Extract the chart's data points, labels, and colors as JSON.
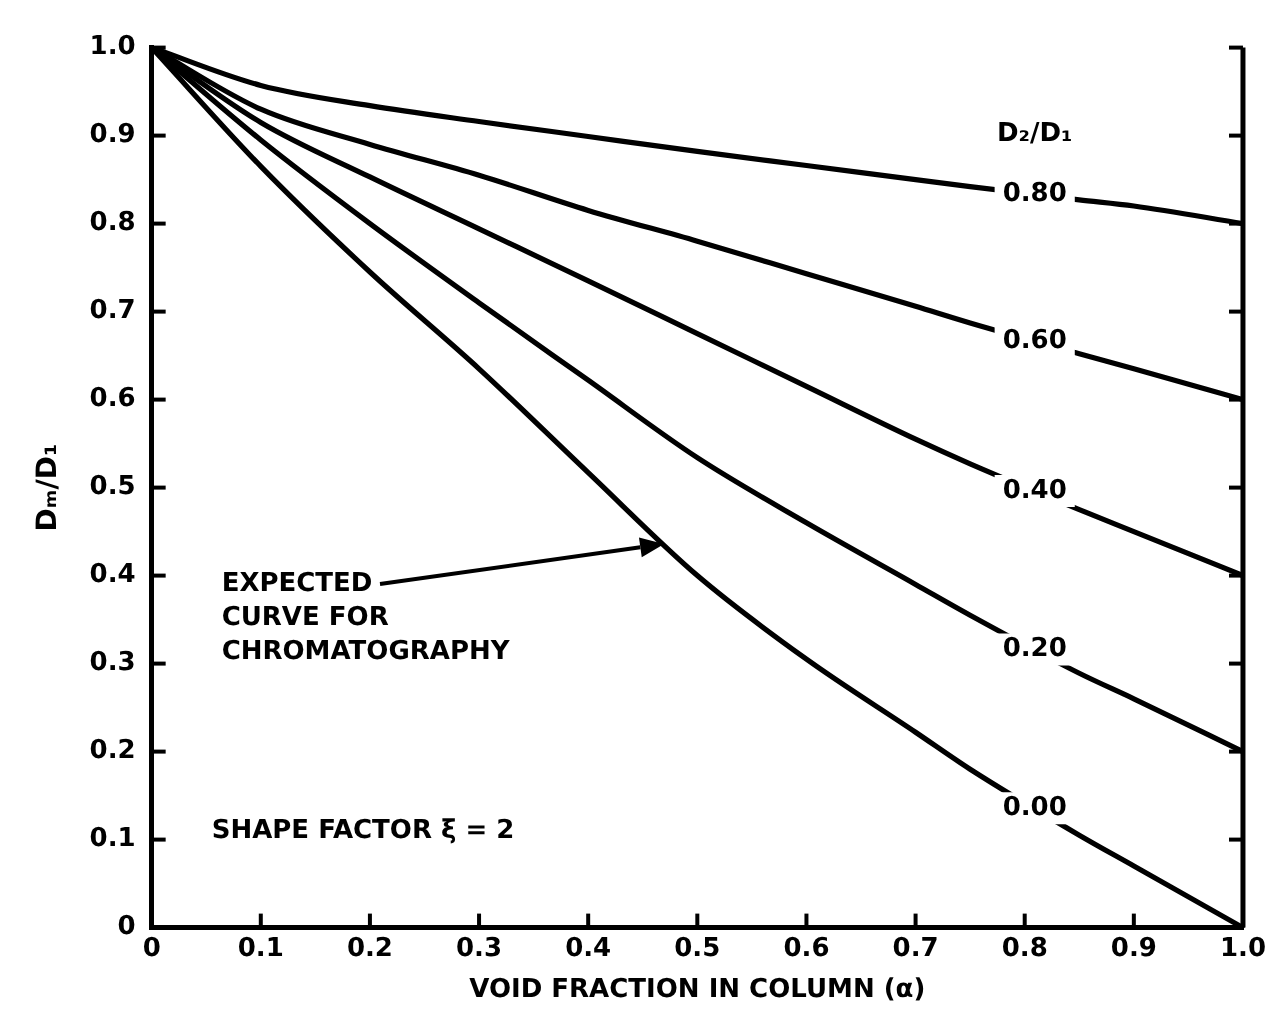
{
  "chart_data": {
    "type": "line",
    "xlabel": "VOID FRACTION IN COLUMN (α)",
    "ylabel": "Dₘ/D₁",
    "legend_title": "D₂/D₁",
    "x": [
      0,
      0.1,
      0.2,
      0.3,
      0.4,
      0.5,
      0.6,
      0.7,
      0.75,
      0.85,
      0.9,
      1.0
    ],
    "series": [
      {
        "name": "0.80",
        "color": "#000000",
        "values": [
          1,
          0.957,
          0.934,
          0.916,
          0.899,
          0.882,
          0.866,
          0.85,
          0.842,
          0.827,
          0.82,
          0.8
        ]
      },
      {
        "name": "0.60",
        "color": "#000000",
        "values": [
          1,
          0.93,
          0.89,
          0.855,
          0.815,
          0.78,
          0.743,
          0.706,
          0.687,
          0.652,
          0.635,
          0.6
        ]
      },
      {
        "name": "0.40",
        "color": "#000000",
        "values": [
          1,
          0.915,
          0.853,
          0.794,
          0.735,
          0.675,
          0.615,
          0.555,
          0.527,
          0.475,
          0.45,
          0.4
        ]
      },
      {
        "name": "0.20",
        "color": "#000000",
        "values": [
          1,
          0.895,
          0.8,
          0.71,
          0.622,
          0.534,
          0.46,
          0.39,
          0.355,
          0.289,
          0.26,
          0.2
        ]
      },
      {
        "name": "0.00",
        "color": "#000000",
        "values": [
          1,
          0.865,
          0.745,
          0.635,
          0.517,
          0.4,
          0.305,
          0.222,
          0.18,
          0.105,
          0.07,
          0
        ]
      }
    ],
    "xlim": [
      0,
      1
    ],
    "ylim": [
      0,
      1
    ],
    "xticks": [
      0,
      0.1,
      0.2,
      0.3,
      0.4,
      0.5,
      0.6,
      0.7,
      0.8,
      0.9,
      {
        "value": 1,
        "label": "1.0"
      }
    ],
    "yticks": [
      0,
      0.1,
      0.2,
      0.3,
      0.4,
      0.5,
      0.6,
      0.7,
      0.8,
      0.9,
      {
        "value": 1,
        "label": "1.0"
      }
    ],
    "annotations": [
      "EXPECTED\nCURVE FOR\nCHROMATOGRAPHY",
      "SHAPE FACTOR ξ = 2"
    ],
    "grid": false,
    "legend": false,
    "marker": "none",
    "line_style": "solid"
  }
}
